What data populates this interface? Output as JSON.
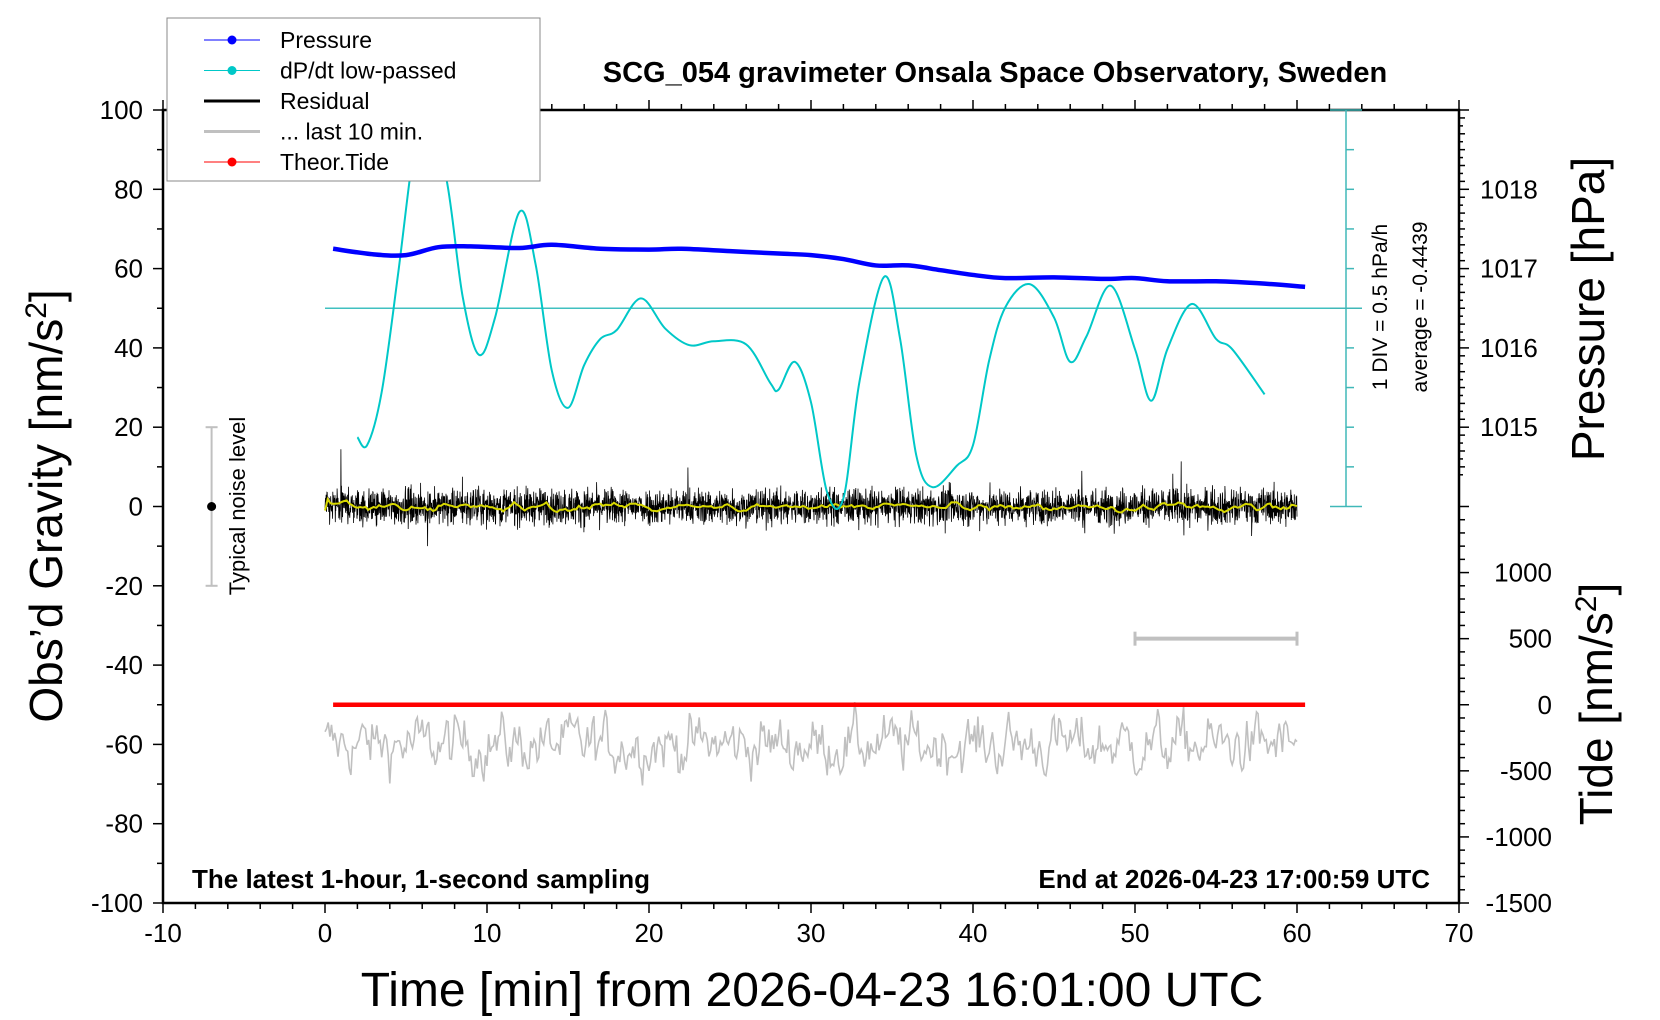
{
  "chart_data": {
    "type": "line",
    "title": "SCG_054 gravimeter Onsala Space Observatory, Sweden",
    "xlabel": "Time [min] from 2026-04-23 16:01:00 UTC",
    "ylabel": "Obs’d Gravity [nm/s",
    "ylabel_sup": "2",
    "ylabel_close": "]",
    "y2label": "Pressure [hPa]",
    "y3label": "Tide [nm/s",
    "y3label_sup": "2",
    "y3label_close": "]",
    "xlim": [
      -10,
      70
    ],
    "ylim": [
      -100,
      100
    ],
    "x_ticks": [
      -10,
      0,
      10,
      20,
      30,
      40,
      50,
      60,
      70
    ],
    "y_ticks": [
      -100,
      -80,
      -60,
      -40,
      -20,
      0,
      20,
      40,
      60,
      80,
      100
    ],
    "pressure_ticks": [
      1015,
      1016,
      1017,
      1018
    ],
    "tide_ticks": [
      -1500,
      -1000,
      -500,
      0,
      500,
      1000
    ],
    "grid": false,
    "legend_placement": "top-left",
    "legend": [
      {
        "label": "Pressure",
        "color": "#0000ff",
        "marker": "dot"
      },
      {
        "label": "dP/dt low-passed",
        "color": "#00c8c8",
        "marker": "dot"
      },
      {
        "label": "Residual",
        "color": "#000000",
        "marker": "line"
      },
      {
        "label": "... last 10 min.",
        "color": "#c0c0c0",
        "marker": "line"
      },
      {
        "label": "Theor.Tide",
        "color": "#ff0000",
        "marker": "dot"
      }
    ],
    "annotations": {
      "left_note": "The latest 1-hour, 1-second sampling",
      "right_note": "End at 2026-04-23 17:00:59 UTC",
      "noise_label": "Typical noise level",
      "div_label": "1 DIV = 0.5 hPa/h",
      "average_label": "average = -0.4439"
    },
    "dpdt_average": -0.4439,
    "dpdt_div": 0.5,
    "noise_level_range": [
      -20,
      20
    ],
    "series": [
      {
        "name": "Pressure",
        "unit": "hPa",
        "color": "#0000ff",
        "x": [
          0.5,
          3,
          5,
          7,
          9,
          12,
          14,
          17,
          20,
          22,
          25,
          28,
          30,
          32,
          34,
          36,
          38,
          40,
          42,
          45,
          48,
          50,
          52,
          55,
          58,
          60.5
        ],
        "y": [
          1017.25,
          1017.18,
          1017.17,
          1017.27,
          1017.28,
          1017.26,
          1017.3,
          1017.25,
          1017.24,
          1017.25,
          1017.22,
          1017.19,
          1017.17,
          1017.12,
          1017.04,
          1017.04,
          1016.98,
          1016.92,
          1016.88,
          1016.89,
          1016.87,
          1016.88,
          1016.84,
          1016.84,
          1016.81,
          1016.77
        ]
      },
      {
        "name": "dP/dt low-passed",
        "unit": "hPa/h",
        "color": "#00c8c8",
        "x": [
          2,
          2.6,
          3.5,
          4.5,
          5.5,
          6.2,
          7.5,
          8.5,
          9.5,
          10.5,
          12,
          13,
          14,
          15,
          16,
          17,
          18,
          19.5,
          21,
          22.5,
          24,
          26,
          27.5,
          28,
          29,
          30,
          31,
          32,
          33,
          34.5,
          35.5,
          36.5,
          37.5,
          39,
          40,
          41,
          42,
          43.5,
          45,
          46,
          47,
          48.5,
          50,
          51,
          52,
          53.5,
          55,
          56,
          58
        ],
        "y": [
          -2.07,
          -2.17,
          -1.5,
          -0.03,
          1.58,
          2.06,
          1.18,
          -0.3,
          -1.03,
          -0.56,
          0.77,
          0.11,
          -1.23,
          -1.7,
          -1.16,
          -0.83,
          -0.72,
          -0.32,
          -0.7,
          -0.91,
          -0.86,
          -0.9,
          -1.39,
          -1.47,
          -1.12,
          -1.63,
          -2.77,
          -2.84,
          -1.36,
          -0.05,
          -0.83,
          -2.3,
          -2.7,
          -2.43,
          -2.17,
          -1.1,
          -0.43,
          -0.14,
          -0.56,
          -1.12,
          -0.8,
          -0.16,
          -0.96,
          -1.61,
          -0.96,
          -0.39,
          -0.83,
          -0.96,
          -1.53
        ]
      },
      {
        "name": "Residual",
        "unit": "nm/s2",
        "color": "#000000",
        "level": 0
      },
      {
        "name": "... last 10 min.",
        "color": "#c0c0c0"
      },
      {
        "name": "Theor.Tide",
        "unit": "nm/s2",
        "color": "#ff0000",
        "x": [
          0.5,
          60.5
        ],
        "y": [
          0,
          0
        ]
      }
    ],
    "ten_min_bar": {
      "x": [
        50,
        60
      ],
      "tide": 500,
      "color": "#c0c0c0"
    }
  }
}
